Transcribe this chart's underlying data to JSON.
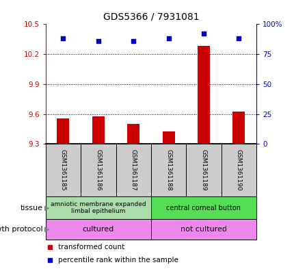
{
  "title": "GDS5366 / 7931081",
  "samples": [
    "GSM1361185",
    "GSM1361186",
    "GSM1361187",
    "GSM1361188",
    "GSM1361189",
    "GSM1361190"
  ],
  "bar_values": [
    9.555,
    9.573,
    9.503,
    9.425,
    10.28,
    9.622
  ],
  "percentile_values": [
    88,
    86,
    86,
    88,
    92,
    88
  ],
  "ylim_left": [
    9.3,
    10.5
  ],
  "yticks_left": [
    9.3,
    9.6,
    9.9,
    10.2,
    10.5
  ],
  "ylim_right": [
    0,
    100
  ],
  "yticks_right": [
    0,
    25,
    50,
    75,
    100
  ],
  "bar_color": "#cc0000",
  "dot_color": "#0000cc",
  "bar_bottom": 9.3,
  "tissue_label_left": "amniotic membrane expanded\nlimbal epithelium",
  "tissue_label_right": "central corneal button",
  "tissue_color_left": "#aaddaa",
  "tissue_color_right": "#55dd55",
  "growth_label_left": "cultured",
  "growth_label_right": "not cultured",
  "growth_color": "#ee88ee",
  "sample_bg_color": "#cccccc",
  "legend_red_label": "transformed count",
  "legend_blue_label": "percentile rank within the sample",
  "title_fontsize": 10,
  "tick_fontsize": 7.5,
  "sample_fontsize": 6.5,
  "annotation_fontsize": 8
}
